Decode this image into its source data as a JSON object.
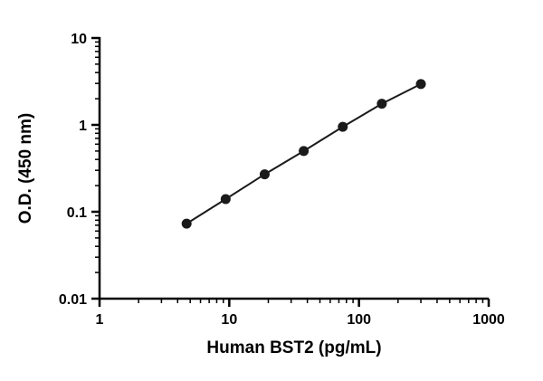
{
  "chart_data": {
    "type": "scatter",
    "title": "",
    "xlabel": "Human BST2 (pg/mL)",
    "ylabel": "O.D. (450 nm)",
    "xscale": "log",
    "yscale": "log",
    "xlim": [
      1,
      1000
    ],
    "ylim": [
      0.01,
      10
    ],
    "x": [
      4.69,
      9.38,
      18.75,
      37.5,
      75,
      150,
      300
    ],
    "y": [
      0.073,
      0.14,
      0.27,
      0.5,
      0.95,
      1.75,
      2.95
    ],
    "x_ticks": [
      1,
      10,
      100,
      1000
    ],
    "x_tick_labels": [
      "1",
      "10",
      "100",
      "1000"
    ],
    "y_ticks": [
      0.01,
      0.1,
      1,
      10
    ],
    "y_tick_labels": [
      "0.01",
      "0.1",
      "1",
      "10"
    ],
    "grid": false,
    "legend": false,
    "connect_points": true,
    "colors": {
      "axis": "#000000",
      "line": "#1a1a1a",
      "marker": "#1a1a1a",
      "background": "#ffffff",
      "text": "#000000"
    }
  }
}
